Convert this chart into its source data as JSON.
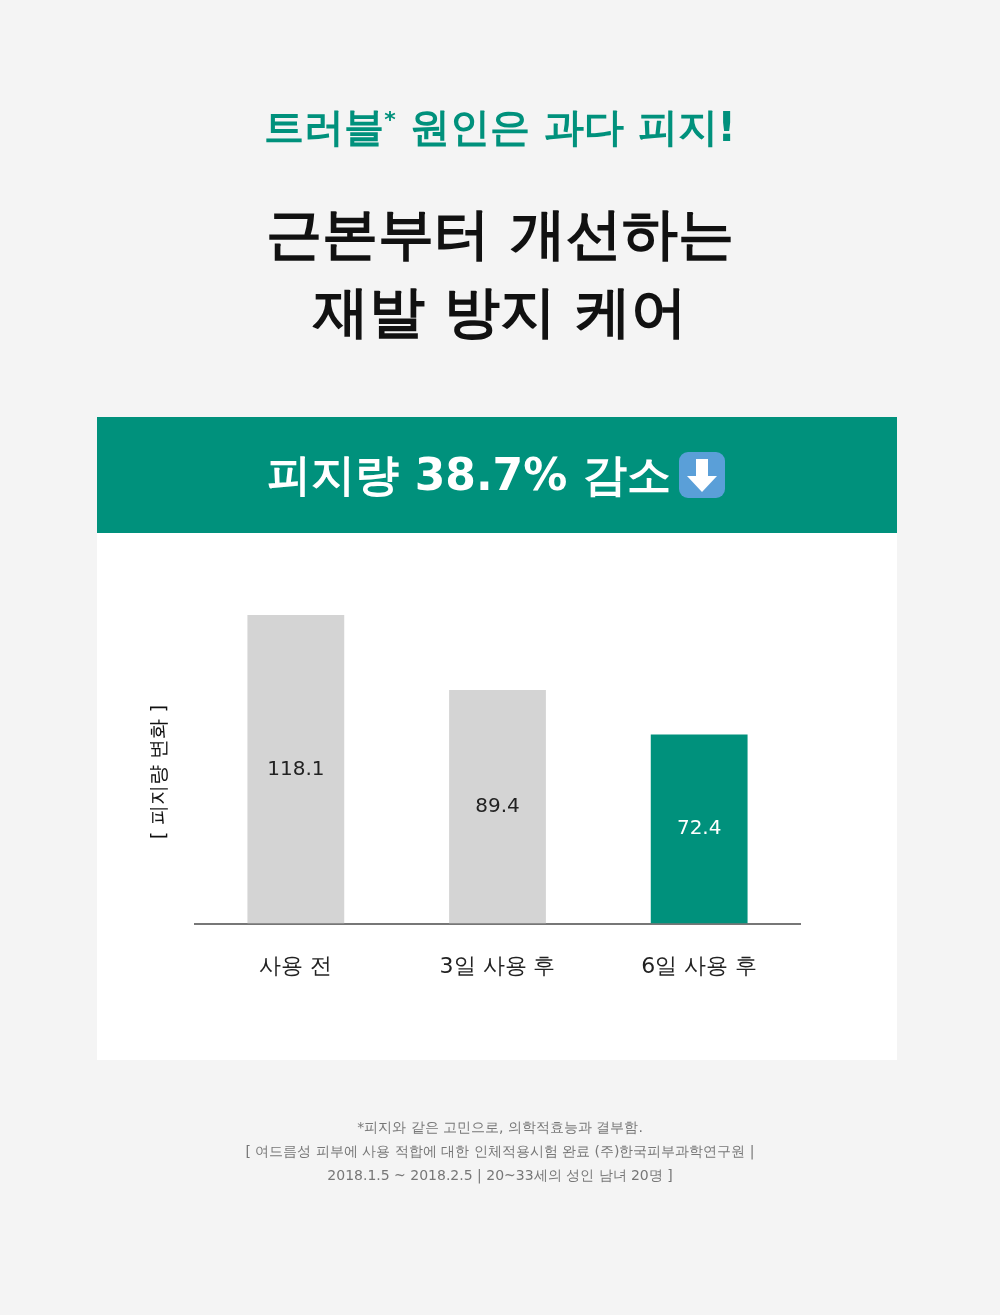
{
  "chart_data": {
    "type": "bar",
    "title": "트러블$^{*}$ 원인은 과다 피지!",
    "subtitle": "근본부터 개선하는\n재발 방지 케어",
    "ylabel": "[ 피지량 변화 ]",
    "categories": [
      "사용 전",
      "3일 사용 후",
      "6일 사용 후"
    ],
    "values": [
      118.1,
      89.4,
      72.4
    ],
    "colors": [
      "#d4d4d4",
      "#d4d4d4",
      "#00917c"
    ],
    "data_labels": true,
    "tick_labels": "x",
    "annotations": [
      "피지량 38.7% 감소",
      "*피지와 같은 고민으로, 의학적효능과 결부함.",
      "[ 여드름성 피부에 사용 적합에 대한 인체적용시험 완료 (주)한국피부과학연구원 |",
      "2018.1.5 ~ 2018.2.5 | 20~33세의 성인 남녀 20명 ]"
    ]
  }
}
